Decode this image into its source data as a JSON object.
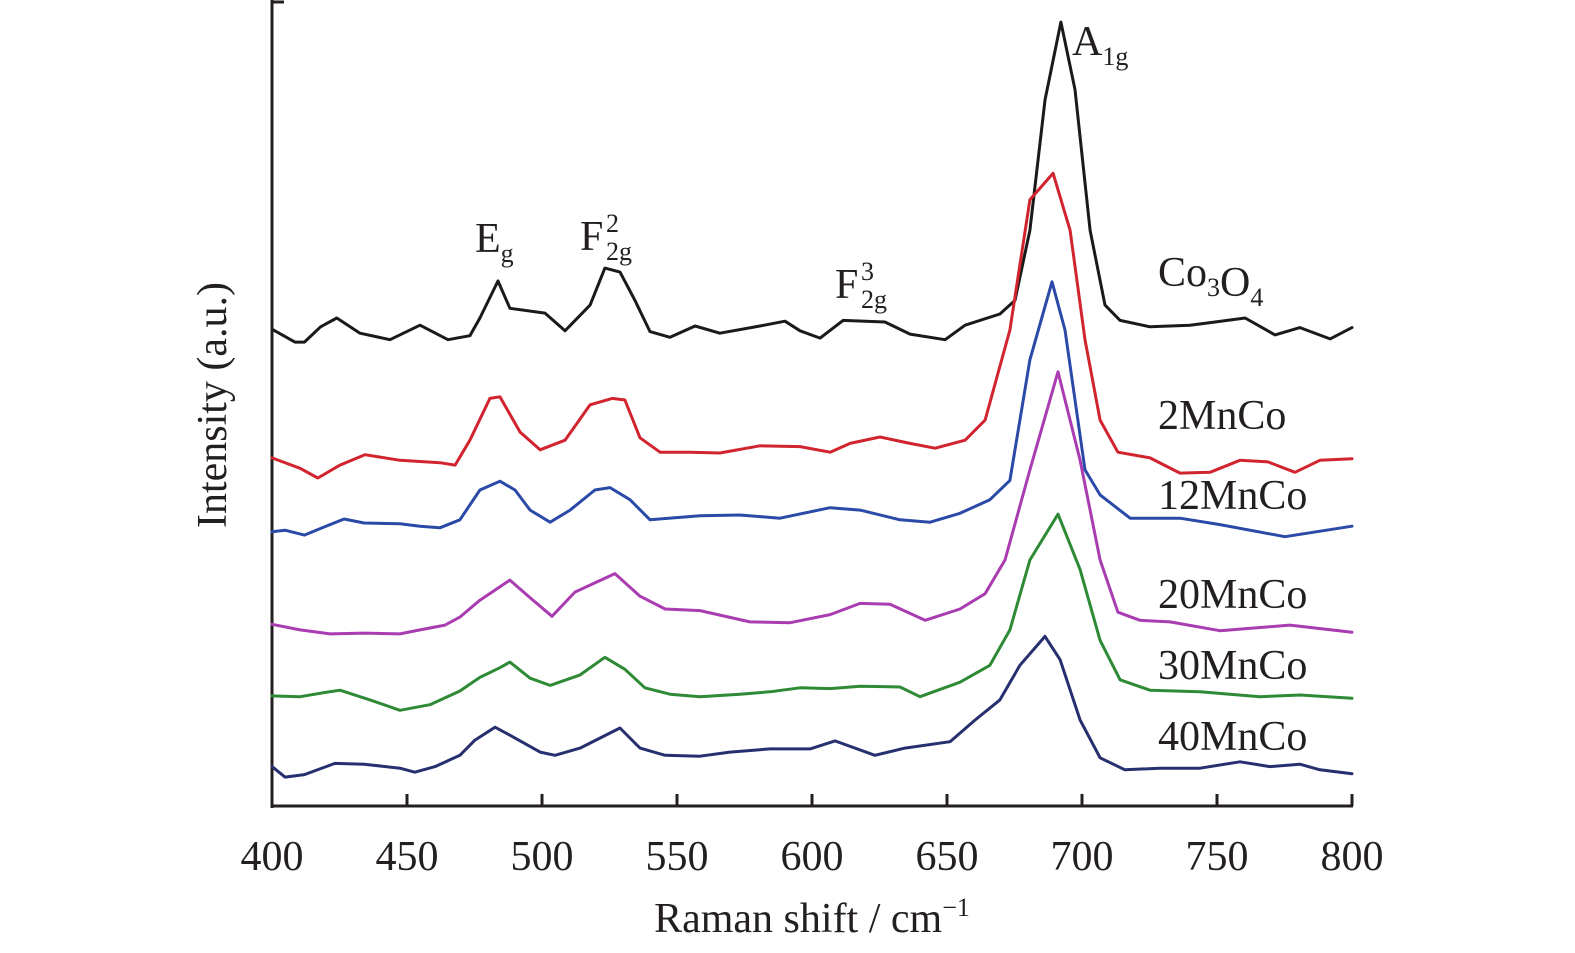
{
  "chart_data": {
    "type": "line",
    "title": "",
    "xlabel": "Raman shift / cm",
    "xlabel_superscript": "−1",
    "ylabel": "Intensity (a.u.)",
    "xlim": [
      400,
      800
    ],
    "ylim": [
      0,
      100
    ],
    "x_ticks": [
      400,
      450,
      500,
      550,
      600,
      650,
      700,
      750,
      800
    ],
    "x_tick_labels": [
      "400",
      "450",
      "500",
      "550",
      "600",
      "650",
      "700",
      "750",
      "800"
    ],
    "y_ticks": [],
    "grid": false,
    "legend": "none (series labelled inline at right)",
    "y_note": "Intensity in arbitrary units with vertically offset traces; values are relative positions on a 0–100 scale of the plot height",
    "peak_annotations": [
      {
        "main": "E",
        "sub": "g",
        "sup": "",
        "x": 484
      },
      {
        "main": "F",
        "sub": "2g",
        "sup": "2",
        "x": 524
      },
      {
        "main": "F",
        "sub": "2g",
        "sup": "3",
        "x": 620
      },
      {
        "main": "A",
        "sub": "1g",
        "sup": "",
        "x": 692
      }
    ],
    "series": [
      {
        "name": "Co3O4",
        "label_main": [
          "Co",
          "O"
        ],
        "label_subs": [
          "3",
          "4"
        ],
        "color": "#1a1a1a",
        "x": [
          400,
          408.5,
          412,
          418,
          424,
          432.6,
          443.7,
          454.8,
          465.2,
          473.3,
          477,
          483.7,
          488.1,
          501.1,
          508.5,
          517.8,
          523.3,
          528.9,
          534.4,
          540,
          547.4,
          556.7,
          565.9,
          580.7,
          590,
          595.6,
          603,
          611.5,
          627,
          636.3,
          649.3,
          656.7,
          669.6,
          675.2,
          680.7,
          686.3,
          692.2,
          697.4,
          703,
          708.5,
          714.1,
          725.2,
          740,
          749.3,
          760.4,
          771.5,
          780.7,
          791.9,
          800
        ],
        "y": [
          59.3,
          57.7,
          57.7,
          59.6,
          60.7,
          58.8,
          58.0,
          59.8,
          58.0,
          58.5,
          60.7,
          65.3,
          61.9,
          61.3,
          59.1,
          62.3,
          66.9,
          66.4,
          62.9,
          59.0,
          58.3,
          59.7,
          58.8,
          59.7,
          60.3,
          59.1,
          58.2,
          60.4,
          60.2,
          58.7,
          58.0,
          59.8,
          61.2,
          62.9,
          71.6,
          87.8,
          97.5,
          89.1,
          71.6,
          62.3,
          60.4,
          59.6,
          59.8,
          60.2,
          60.7,
          58.6,
          59.5,
          58.1,
          59.5
        ]
      },
      {
        "name": "2MnCo",
        "label_main": [
          "2MnCo"
        ],
        "label_subs": [],
        "color": "#d1242f",
        "x": [
          400,
          410.4,
          417,
          425.2,
          434.4,
          447.4,
          462.2,
          467.8,
          473.3,
          480.7,
          484.4,
          491.9,
          499.3,
          508.5,
          517.8,
          526,
          530.7,
          536.3,
          543.7,
          554.8,
          565.9,
          580.7,
          595.6,
          606.7,
          614.1,
          625.2,
          636.3,
          645.6,
          656.7,
          664.1,
          673.3,
          680.7,
          689.3,
          695.6,
          701.1,
          706.7,
          713.3,
          725.2,
          736.3,
          747.4,
          758.5,
          768.9,
          778.9,
          788.1,
          800
        ],
        "y": [
          43.3,
          42.0,
          40.8,
          42.4,
          43.7,
          43.0,
          42.7,
          42.4,
          45.5,
          50.7,
          50.9,
          46.5,
          44.3,
          45.5,
          49.9,
          50.7,
          50.5,
          45.8,
          44.0,
          44.0,
          43.9,
          44.8,
          44.7,
          44.0,
          45.1,
          45.9,
          45.1,
          44.5,
          45.5,
          48.0,
          59.2,
          75.4,
          78.7,
          71.6,
          58.0,
          48.0,
          44.0,
          43.3,
          41.4,
          41.5,
          43.0,
          42.8,
          41.5,
          43.0,
          43.2
        ]
      },
      {
        "name": "12MnCo",
        "label_main": [
          "12MnCo"
        ],
        "label_subs": [],
        "color": "#2b4aa8",
        "x": [
          400,
          404.8,
          412,
          419.3,
          426.7,
          434.1,
          447.4,
          454.8,
          462.2,
          469.6,
          477,
          484.4,
          490,
          495.6,
          503,
          510.4,
          519.6,
          525.2,
          532.6,
          540,
          558.5,
          573.3,
          588.1,
          606.7,
          617.8,
          632.6,
          643.7,
          654.8,
          665.9,
          673.3,
          680.7,
          688.9,
          693.7,
          701.1,
          706.7,
          717.8,
          736.3,
          751.1,
          775.2,
          800
        ],
        "y": [
          34.1,
          34.3,
          33.7,
          34.7,
          35.7,
          35.2,
          35.1,
          34.8,
          34.6,
          35.6,
          39.3,
          40.4,
          39.3,
          36.8,
          35.3,
          36.8,
          39.3,
          39.6,
          38.1,
          35.6,
          36.1,
          36.2,
          35.8,
          37.1,
          36.8,
          35.6,
          35.3,
          36.4,
          38.1,
          40.5,
          55.5,
          65.2,
          59.2,
          41.8,
          38.7,
          35.8,
          35.8,
          35.0,
          33.5,
          34.8
        ]
      },
      {
        "name": "20MnCo",
        "label_main": [
          "20MnCo"
        ],
        "label_subs": [],
        "color": "#a83cb0",
        "x": [
          400,
          410.4,
          421.5,
          434.4,
          447.4,
          454.8,
          464.1,
          469.6,
          477,
          488.1,
          495.6,
          503.7,
          512.2,
          527,
          536.3,
          545.6,
          558.5,
          577,
          591.9,
          606.7,
          617.8,
          628.9,
          641.9,
          654.8,
          664.1,
          671.5,
          680.7,
          691.1,
          699.3,
          706.7,
          713.3,
          721.5,
          732.6,
          751.1,
          777,
          800
        ],
        "y": [
          22.6,
          21.9,
          21.4,
          21.5,
          21.4,
          21.9,
          22.5,
          23.5,
          25.6,
          28.1,
          25.9,
          23.6,
          26.6,
          28.9,
          26.1,
          24.5,
          24.3,
          22.9,
          22.8,
          23.8,
          25.2,
          25.1,
          23.1,
          24.5,
          26.4,
          30.6,
          41.8,
          54.0,
          43.0,
          30.6,
          24.1,
          23.1,
          22.9,
          21.8,
          22.5,
          21.6
        ]
      },
      {
        "name": "30MnCo",
        "label_main": [
          "30MnCo"
        ],
        "label_subs": [],
        "color": "#2e8a35",
        "x": [
          400,
          410.4,
          419.3,
          425.2,
          436.3,
          447.4,
          458.5,
          469.6,
          477,
          484.4,
          488.1,
          495.6,
          503,
          514.1,
          523.3,
          530.7,
          538.1,
          547.4,
          558.5,
          573.3,
          584.4,
          595.6,
          606.7,
          617.8,
          632.6,
          640,
          654.8,
          665.9,
          673.3,
          680.7,
          691.1,
          699.3,
          706.7,
          714.1,
          725.2,
          743.7,
          765.9,
          780.7,
          800
        ],
        "y": [
          13.7,
          13.6,
          14.1,
          14.4,
          13.2,
          11.9,
          12.6,
          14.3,
          16.0,
          17.2,
          17.9,
          15.9,
          15.0,
          16.3,
          18.5,
          17.0,
          14.7,
          13.9,
          13.6,
          13.9,
          14.2,
          14.7,
          14.6,
          14.9,
          14.8,
          13.6,
          15.4,
          17.5,
          21.9,
          30.6,
          36.3,
          29.4,
          20.6,
          15.7,
          14.4,
          14.2,
          13.6,
          13.8,
          13.4
        ]
      },
      {
        "name": "40MnCo",
        "label_main": [
          "40MnCo"
        ],
        "label_subs": [],
        "color": "#27306e",
        "x": [
          400,
          404.8,
          412,
          423.3,
          434.1,
          447.4,
          452.9,
          460.4,
          469.6,
          475.2,
          482.6,
          488.1,
          499.3,
          504.8,
          514.1,
          528.9,
          536.3,
          545.6,
          558.5,
          569.6,
          584.4,
          599.3,
          608.5,
          623.3,
          634.4,
          651.1,
          660.4,
          669.6,
          677,
          686.3,
          691.9,
          699.3,
          706.7,
          715.9,
          728.9,
          743.7,
          758.5,
          769.6,
          780.7,
          788.1,
          800
        ],
        "y": [
          4.9,
          3.6,
          3.9,
          5.3,
          5.2,
          4.7,
          4.2,
          4.9,
          6.3,
          8.2,
          9.8,
          8.8,
          6.7,
          6.3,
          7.2,
          9.7,
          7.2,
          6.3,
          6.2,
          6.7,
          7.1,
          7.1,
          8.1,
          6.3,
          7.2,
          8.0,
          10.7,
          13.2,
          17.5,
          21.1,
          18.2,
          10.7,
          6.0,
          4.5,
          4.7,
          4.7,
          5.5,
          4.9,
          5.2,
          4.5,
          4.0
        ]
      }
    ]
  }
}
